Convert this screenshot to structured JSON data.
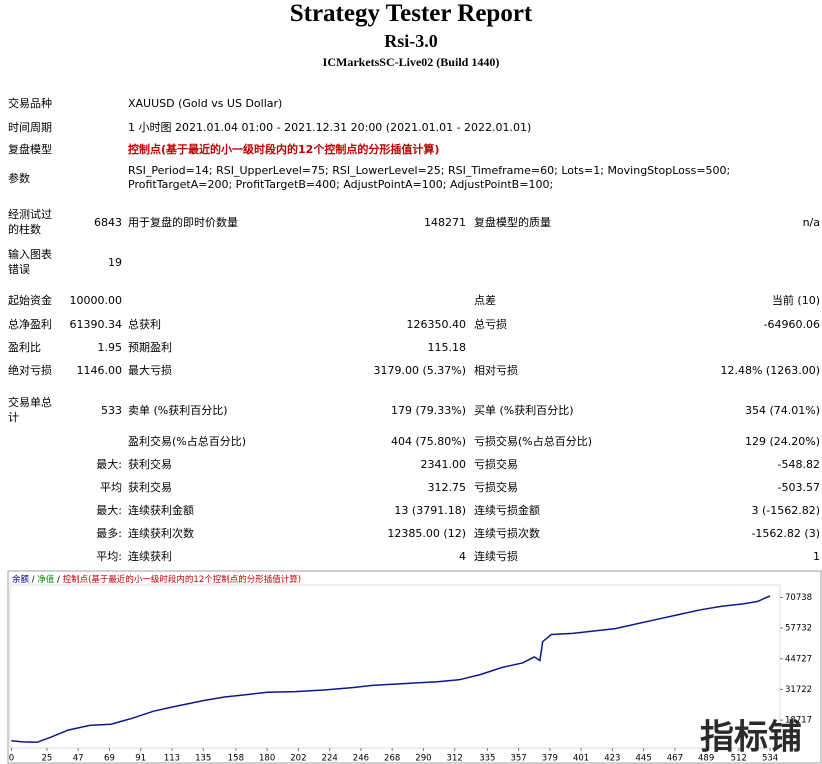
{
  "header": {
    "title": "Strategy Tester Report",
    "expert": "Rsi-3.0",
    "server": "ICMarketsSC-Live02 (Build 1440)"
  },
  "info": [
    {
      "label": "交易品种",
      "value": [
        "XAUUSD (Gold vs US Dollar)"
      ]
    },
    {
      "label": "时间周期",
      "value": [
        "1 小时图 2021.01.04 01:00 - 2021.12.31 20:00 (2021.01.01 - 2022.01.01)"
      ]
    },
    {
      "label": "复盘模型",
      "value": [
        "控制点(基于最近的小一级时段内的12个控制点的分形插值计算)"
      ],
      "color": "#c00000"
    },
    {
      "label": "参数",
      "value": [
        "RSI_Period=14; RSI_UpperLevel=75; RSI_LowerLevel=25; RSI_Timeframe=60; Lots=1; MovingStopLoss=500;",
        "ProfitTargetA=200; ProfitTargetB=400; AdjustPointA=100; AdjustPointB=100;"
      ]
    }
  ],
  "stats": [
    [
      "经测试过的柱数",
      "6843",
      "用于复盘的即时价数量",
      "148271",
      "复盘模型的质量",
      "n/a"
    ],
    [
      "输入图表错误",
      "19",
      null,
      null,
      null,
      null
    ],
    [
      "起始资金",
      "10000.00",
      null,
      null,
      "点差",
      "当前 (10)"
    ],
    [
      "总净盈利",
      "61390.34",
      "总获利",
      "126350.40",
      "总亏损",
      "-64960.06"
    ],
    [
      "盈利比",
      "1.95",
      "预期盈利",
      "115.18",
      null,
      null
    ],
    [
      "绝对亏损",
      "1146.00",
      "最大亏损",
      "3179.00 (5.37%)",
      "相对亏损",
      "12.48% (1263.00)"
    ],
    [
      "交易单总计",
      "533",
      "卖单 (%获利百分比)",
      "179 (79.33%)",
      "买单 (%获利百分比)",
      "354 (74.01%)"
    ],
    [
      null,
      null,
      "盈利交易(%占总百分比)",
      "404 (75.80%)",
      "亏损交易(%占总百分比)",
      "129 (24.20%)"
    ],
    [
      null,
      "最大:",
      "获利交易",
      "2341.00",
      "亏损交易",
      "-548.82"
    ],
    [
      null,
      "平均",
      "获利交易",
      "312.75",
      "亏损交易",
      "-503.57"
    ],
    [
      null,
      "最大:",
      "连续获利金额",
      "13 (3791.18)",
      "连续亏损金额",
      "3 (-1562.82)"
    ],
    [
      null,
      "最多:",
      "连续获利次数",
      "12385.00 (12)",
      "连续亏损次数",
      "-1562.82 (3)"
    ],
    [
      null,
      "平均:",
      "连续获利",
      "4",
      "连续亏损",
      "1"
    ]
  ],
  "chart_data": {
    "type": "line",
    "legend": [
      {
        "name": "余额",
        "color": "#0000a0"
      },
      {
        "name": "净值",
        "color": "#009000"
      },
      {
        "name": "控制点(基于最近的小一级时段内的12个控制点的分形插值计算)",
        "color": "#c00000"
      }
    ],
    "legend_separator": " / ",
    "x": [
      0,
      8,
      18,
      28,
      40,
      55,
      70,
      85,
      100,
      115,
      135,
      150,
      165,
      180,
      200,
      220,
      240,
      255,
      270,
      285,
      300,
      315,
      330,
      345,
      360,
      368,
      372,
      374,
      380,
      395,
      410,
      425,
      440,
      455,
      470,
      485,
      500,
      515,
      525,
      534
    ],
    "series": [
      {
        "name": "余额",
        "color": "#0a1a8c",
        "values": [
          10000,
          9500,
          9300,
          11500,
          14500,
          16500,
          17000,
          19500,
          22500,
          24500,
          27000,
          28500,
          29500,
          30500,
          30800,
          31500,
          32500,
          33500,
          34000,
          34500,
          35000,
          35800,
          38000,
          41000,
          43000,
          45500,
          44000,
          52000,
          55000,
          55500,
          56500,
          57500,
          59500,
          61500,
          63500,
          65500,
          67000,
          68000,
          69000,
          71390
        ]
      }
    ],
    "xlim": [
      -1,
      541
    ],
    "ylim": [
      6900,
      76000
    ],
    "xticks": [
      0,
      25,
      47,
      69,
      91,
      113,
      135,
      158,
      180,
      202,
      224,
      246,
      268,
      290,
      312,
      335,
      357,
      379,
      401,
      423,
      445,
      467,
      489,
      512,
      534
    ],
    "yticks": [
      18717,
      31722,
      44727,
      57732,
      70738
    ]
  },
  "watermark": "指标铺"
}
